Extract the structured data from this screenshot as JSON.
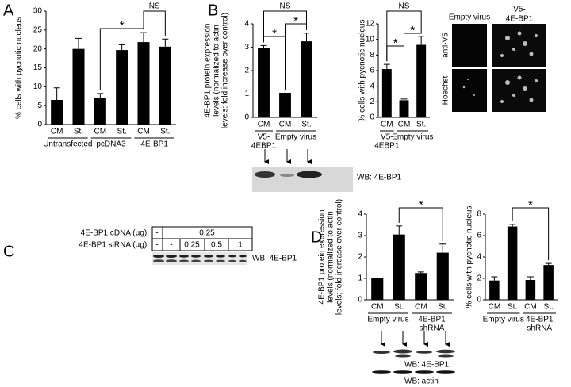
{
  "panel_labels": [
    "A",
    "B",
    "C",
    "D"
  ],
  "chart_data": [
    {
      "type": "bar",
      "color": "#000000",
      "y_label": [
        "% cells with pycnotic nucleus"
      ],
      "ylim": [
        0,
        30
      ],
      "yticks": [
        0,
        5,
        10,
        15,
        20,
        25,
        30
      ],
      "groups": [
        {
          "label": [
            "Untransfected"
          ],
          "categories": [
            "CM",
            "St."
          ],
          "values": [
            6.5,
            20
          ],
          "errors": [
            3.2,
            2.8
          ]
        },
        {
          "label": [
            "pcDNA3"
          ],
          "categories": [
            "CM",
            "St."
          ],
          "values": [
            7,
            19.7
          ],
          "errors": [
            1.2,
            1.4
          ]
        },
        {
          "label": [
            "4E-BP1"
          ],
          "categories": [
            "CM",
            "St."
          ],
          "values": [
            21.8,
            20.6
          ],
          "errors": [
            2.5,
            2
          ]
        }
      ],
      "annotations": [
        "*",
        "NS"
      ]
    },
    {
      "type": "bar",
      "color": "#000000",
      "y_label": [
        "4E-BP1 protein expression",
        "levels (normalized to actin",
        "levels; fold increase over control)"
      ],
      "ylim": [
        0,
        4
      ],
      "yticks": [
        0,
        1,
        2,
        3,
        4
      ],
      "groups": [
        {
          "label": [
            "V5-",
            "4EBP1"
          ],
          "categories": [
            "CM"
          ],
          "values": [
            2.95
          ],
          "errors": [
            0.12
          ]
        },
        {
          "label": [
            "Empty virus"
          ],
          "categories": [
            "CM",
            "St."
          ],
          "values": [
            1.05,
            3.25
          ],
          "errors": [
            null,
            0.35
          ]
        }
      ],
      "annotations": [
        "NS",
        "*",
        "*"
      ]
    },
    {
      "type": "bar",
      "color": "#000000",
      "y_label": [
        "% cells with pycnotic nucleus"
      ],
      "ylim": [
        0,
        12
      ],
      "yticks": [
        0,
        2,
        4,
        6,
        8,
        10,
        12
      ],
      "groups": [
        {
          "label": [
            "V5-",
            "4EBP1"
          ],
          "categories": [
            "CM"
          ],
          "values": [
            6.2
          ],
          "errors": [
            0.6
          ]
        },
        {
          "label": [
            "Empty virus"
          ],
          "categories": [
            "CM",
            "St."
          ],
          "values": [
            2.2,
            9.3
          ],
          "errors": [
            0.15,
            1.1
          ]
        }
      ],
      "annotations": [
        "NS",
        "*",
        "*"
      ]
    },
    {
      "type": "bar",
      "color": "#000000",
      "y_label": [
        "4E-BP1 protein expression",
        "levels (normalized to actin",
        "levels; fold increase over control)"
      ],
      "ylim": [
        0,
        4
      ],
      "yticks": [
        0,
        1,
        2,
        3,
        4
      ],
      "groups": [
        {
          "label": [
            "Empty virus"
          ],
          "categories": [
            "CM",
            "St."
          ],
          "values": [
            1,
            3.05
          ],
          "errors": [
            null,
            0.4
          ]
        },
        {
          "label": [
            "4E-BP1",
            "shRNA"
          ],
          "categories": [
            "CM",
            "St."
          ],
          "values": [
            1.25,
            2.2
          ],
          "errors": [
            0.05,
            0.4
          ]
        }
      ],
      "annotations": [
        "*"
      ]
    },
    {
      "type": "bar",
      "color": "#000000",
      "y_label": [
        "% cells with pycnotic nucleus"
      ],
      "ylim": [
        0,
        8
      ],
      "yticks": [
        0,
        2,
        4,
        6,
        8
      ],
      "groups": [
        {
          "label": [
            "Empty virus"
          ],
          "categories": [
            "CM",
            "St."
          ],
          "values": [
            1.8,
            6.85
          ],
          "errors": [
            0.35,
            0.2
          ]
        },
        {
          "label": [
            "4E-BP1",
            "shRNA"
          ],
          "categories": [
            "CM",
            "St."
          ],
          "values": [
            1.85,
            3.25
          ],
          "errors": [
            0.3,
            0.15
          ]
        }
      ],
      "annotations": [
        "*"
      ]
    }
  ],
  "panel_b_images": {
    "columns": [
      [
        "Empty virus"
      ],
      [
        "V5-",
        "4E-BP1"
      ]
    ],
    "rows": [
      "anti-V5",
      "Hoechst"
    ]
  },
  "blots": {
    "b": "WB: 4E-BP1",
    "c": "WB: 4E-BP1",
    "d": [
      "WB: 4E-BP1",
      "WB: actin"
    ]
  },
  "panel_c_table": {
    "rows": [
      {
        "label": "4E-BP1 cDNA (µg):",
        "cells": [
          "-",
          "0.25"
        ]
      },
      {
        "label": "4E-BP1 siRNA (µg):",
        "cells": [
          "-",
          "-",
          "0.25",
          "0.5",
          "1"
        ]
      }
    ]
  }
}
